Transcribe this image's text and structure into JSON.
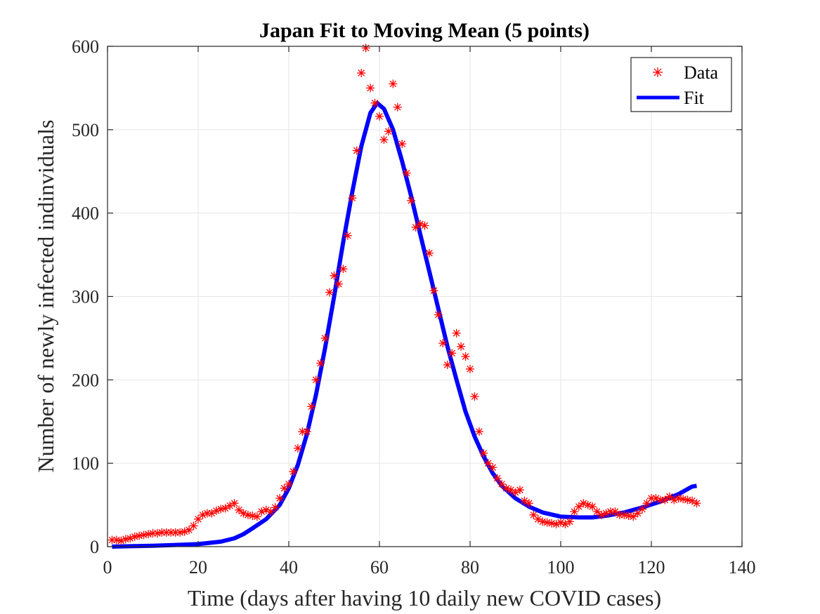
{
  "chart_data": {
    "type": "scatter",
    "title": "Japan Fit to Moving Mean (5 points)",
    "xlabel": "Time (days after having 10 daily new COVID cases)",
    "ylabel": "Number of newly infected indinviduals",
    "xlim": [
      0,
      140
    ],
    "ylim": [
      0,
      600
    ],
    "xticks": [
      0,
      20,
      40,
      60,
      80,
      100,
      120,
      140
    ],
    "yticks": [
      0,
      100,
      200,
      300,
      400,
      500,
      600
    ],
    "grid": true,
    "legend_position": "top-right",
    "series": [
      {
        "name": "Data",
        "kind": "markers",
        "marker": "asterisk",
        "color": "#ff0000",
        "x": [
          1,
          2,
          3,
          4,
          5,
          6,
          7,
          8,
          9,
          10,
          11,
          12,
          13,
          14,
          15,
          16,
          17,
          18,
          19,
          20,
          21,
          22,
          23,
          24,
          25,
          26,
          27,
          28,
          29,
          30,
          31,
          32,
          33,
          34,
          35,
          36,
          37,
          38,
          39,
          40,
          41,
          42,
          43,
          44,
          45,
          46,
          47,
          48,
          49,
          50,
          51,
          52,
          53,
          54,
          55,
          56,
          57,
          58,
          59,
          60,
          61,
          62,
          63,
          64,
          65,
          66,
          67,
          68,
          69,
          70,
          71,
          72,
          73,
          74,
          75,
          76,
          77,
          78,
          79,
          80,
          81,
          82,
          83,
          84,
          85,
          86,
          87,
          88,
          89,
          90,
          91,
          92,
          93,
          94,
          95,
          96,
          97,
          98,
          99,
          100,
          101,
          102,
          103,
          104,
          105,
          106,
          107,
          108,
          109,
          110,
          111,
          112,
          113,
          114,
          115,
          116,
          117,
          118,
          119,
          120,
          121,
          122,
          123,
          124,
          125,
          126,
          127,
          128,
          129,
          130
        ],
        "y": [
          8,
          8,
          7,
          9,
          10,
          12,
          13,
          14,
          15,
          16,
          16,
          17,
          17,
          17,
          17,
          17,
          18,
          20,
          25,
          33,
          38,
          40,
          40,
          43,
          45,
          46,
          49,
          52,
          44,
          40,
          38,
          37,
          36,
          42,
          44,
          42,
          47,
          58,
          70,
          75,
          90,
          118,
          138,
          138,
          168,
          200,
          220,
          250,
          305,
          325,
          315,
          333,
          373,
          418,
          475,
          568,
          598,
          550,
          532,
          516,
          488,
          498,
          555,
          527,
          483,
          448,
          415,
          383,
          387,
          385,
          352,
          307,
          278,
          244,
          218,
          232,
          256,
          240,
          228,
          213,
          180,
          138,
          112,
          100,
          95,
          82,
          75,
          70,
          68,
          65,
          68,
          55,
          52,
          38,
          33,
          30,
          29,
          28,
          27,
          29,
          27,
          30,
          42,
          48,
          52,
          50,
          48,
          42,
          38,
          40,
          42,
          42,
          38,
          38,
          37,
          36,
          40,
          45,
          52,
          58,
          58,
          56,
          56,
          60,
          56,
          58,
          57,
          56,
          55,
          52
        ]
      },
      {
        "name": "Fit",
        "kind": "line",
        "color": "#0000ff",
        "x": [
          1,
          5,
          10,
          15,
          20,
          25,
          28,
          30,
          32,
          35,
          38,
          40,
          42,
          44,
          46,
          48,
          50,
          52,
          54,
          56,
          58,
          59.5,
          61,
          63,
          65,
          67,
          69,
          71,
          73,
          75,
          77,
          79,
          81,
          83,
          85,
          87,
          90,
          93,
          96,
          100,
          104,
          107,
          110,
          114,
          118,
          122,
          126,
          129,
          130
        ],
        "y": [
          0,
          0.5,
          1,
          2,
          3,
          6,
          10,
          15,
          22,
          33,
          50,
          70,
          98,
          135,
          182,
          238,
          300,
          365,
          425,
          480,
          520,
          532,
          525,
          500,
          462,
          420,
          375,
          330,
          285,
          240,
          200,
          162,
          132,
          108,
          88,
          73,
          58,
          48,
          41,
          36,
          35,
          35,
          37,
          41,
          47,
          54,
          63,
          72,
          73
        ]
      }
    ]
  }
}
